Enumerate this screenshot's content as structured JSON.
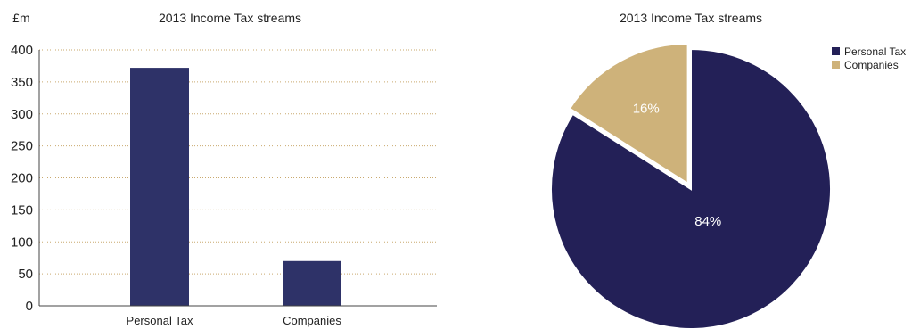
{
  "colors": {
    "personal": "#2e3268",
    "personal_pie": "#232057",
    "companies": "#ceb27a",
    "grid": "#c9a96e",
    "axis": "#444444",
    "text": "#222222",
    "slice_label": "#ffffff"
  },
  "chart_data": [
    {
      "type": "bar",
      "title": "2013 Income Tax streams",
      "ylabel": "£m",
      "categories": [
        "Personal Tax",
        "Companies"
      ],
      "values": [
        372,
        70
      ],
      "ylim": [
        0,
        400
      ],
      "yticks": [
        0,
        50,
        100,
        150,
        200,
        250,
        300,
        350,
        400
      ],
      "ytick_labels": [
        "0",
        "50",
        "100",
        "150",
        "200",
        "250",
        "300",
        "350",
        "400"
      ],
      "grid": true
    },
    {
      "type": "pie",
      "title": "2013 Income Tax streams",
      "slices": [
        {
          "label": "Personal Tax",
          "percent": 84,
          "value_label": "84%"
        },
        {
          "label": "Companies",
          "percent": 16,
          "value_label": "16%"
        }
      ],
      "legend": "top-right",
      "exploded": "Companies"
    }
  ]
}
